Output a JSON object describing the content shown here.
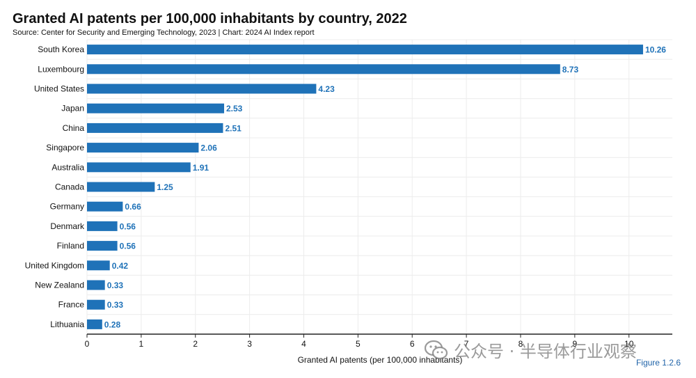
{
  "header": {
    "title": "Granted AI patents per 100,000 inhabitants by country, 2022",
    "subtitle": "Source: Center for Security and Emerging Technology, 2023 | Chart: 2024 AI Index report"
  },
  "watermark": {
    "icon": "wechat-icon",
    "text": "公众号 · 半导体行业观察"
  },
  "figure_label": "Figure 1.2.6",
  "colors": {
    "bar": "#1f72b8",
    "label": "#1f72b8",
    "grid": "#ececec",
    "axis": "#222222"
  },
  "chart_data": {
    "type": "bar",
    "orientation": "horizontal",
    "title": "Granted AI patents per 100,000 inhabitants by country, 2022",
    "xlabel": "Granted AI patents (per 100,000 inhabitants)",
    "ylabel": "",
    "xlim": [
      0,
      10.8
    ],
    "xticks": [
      0,
      1,
      2,
      3,
      4,
      5,
      6,
      7,
      8,
      9,
      10
    ],
    "categories": [
      "South Korea",
      "Luxembourg",
      "United States",
      "Japan",
      "China",
      "Singapore",
      "Australia",
      "Canada",
      "Germany",
      "Denmark",
      "Finland",
      "United Kingdom",
      "New Zealand",
      "France",
      "Lithuania"
    ],
    "values": [
      10.26,
      8.73,
      4.23,
      2.53,
      2.51,
      2.06,
      1.91,
      1.25,
      0.66,
      0.56,
      0.56,
      0.42,
      0.33,
      0.33,
      0.28
    ],
    "value_labels": [
      "10.26",
      "8.73",
      "4.23",
      "2.53",
      "2.51",
      "2.06",
      "1.91",
      "1.25",
      "0.66",
      "0.56",
      "0.56",
      "0.42",
      "0.33",
      "0.33",
      "0.28"
    ],
    "grid": true
  }
}
